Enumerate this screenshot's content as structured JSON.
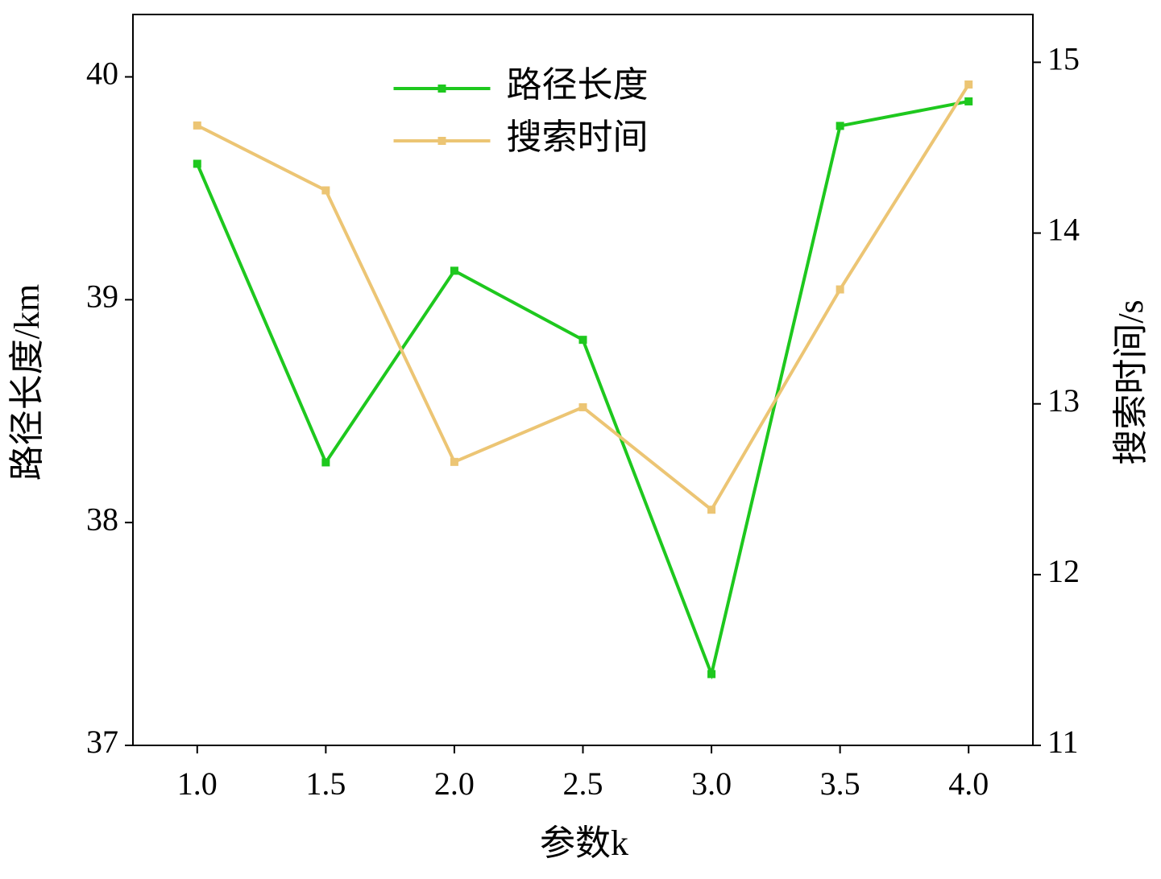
{
  "chart_data": {
    "type": "line",
    "xlabel": "参数k",
    "ylabel": "路径长度/km",
    "y2label": "搜索时间/s",
    "x": [
      1.0,
      1.5,
      2.0,
      2.5,
      3.0,
      3.5,
      4.0
    ],
    "xlim": [
      0.75,
      4.25
    ],
    "xticks": [
      {
        "value": 1,
        "label": "1.0"
      },
      {
        "value": 1.5,
        "label": "1.5"
      },
      {
        "value": 2,
        "label": "2.0"
      },
      {
        "value": 2.5,
        "label": "2.5"
      },
      {
        "value": 3,
        "label": "3.0"
      },
      {
        "value": 3.5,
        "label": "3.5"
      },
      {
        "value": 4,
        "label": "4.0"
      }
    ],
    "ylim": [
      37,
      40.28
    ],
    "yticks": [
      37,
      38,
      39,
      40
    ],
    "y2lim": [
      11,
      15.28
    ],
    "y2ticks": [
      11,
      12,
      13,
      14,
      15
    ],
    "legend": "upper center",
    "series": [
      {
        "name": "路径长度",
        "color": "#1ec81e",
        "values": [
          39.61,
          38.27,
          39.13,
          38.82,
          37.32,
          39.78,
          39.89
        ]
      },
      {
        "name": "搜索时间",
        "color": "#ecc574",
        "axis": "y2",
        "values": [
          14.63,
          14.25,
          12.66,
          12.98,
          12.38,
          13.67,
          14.87
        ]
      }
    ]
  }
}
